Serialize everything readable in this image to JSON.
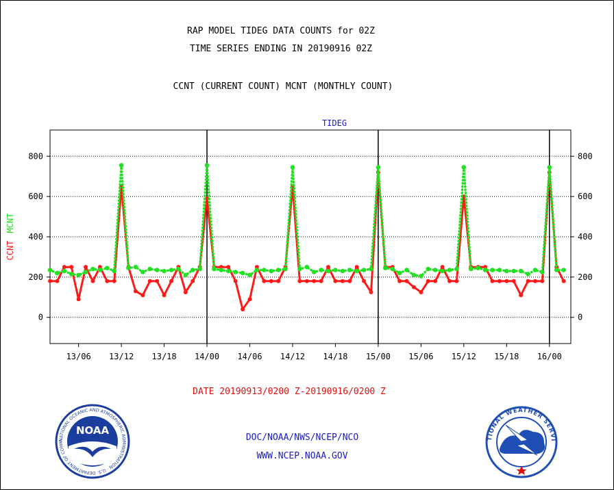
{
  "header": {
    "title_line1": "RAP MODEL TIDEG DATA COUNTS for 02Z",
    "title_line2": "TIME SERIES ENDING IN 20190916 02Z",
    "subtitle": "CCNT (CURRENT COUNT) MCNT (MONTHLY COUNT)"
  },
  "footer": {
    "date_range": "DATE 20190913/0200 Z-20190916/0200 Z",
    "org": "DOC/NOAA/NWS/NCEP/NCO",
    "url": "WWW.NCEP.NOAA.GOV"
  },
  "logos": {
    "noaa_label": "NOAA",
    "noaa_ring": "NATIONAL OCEANIC AND ATMOSPHERIC ADMINISTRATION · U.S. DEPARTMENT OF COMMERCE",
    "nws_ring": "NATIONAL WEATHER SERVICE"
  },
  "colors": {
    "ccnt": "#ff1a1a",
    "mcnt": "#22e022",
    "panel_title": "#1a1acc",
    "footer_red": "#e01010",
    "footer_blue": "#1a1acc",
    "noaa_blue": "#1b3e9e",
    "nws_blue": "#1f4fb5"
  },
  "chart_data": {
    "type": "line",
    "title": "TIDEG",
    "ylabel_left_ccnt": "CCNT",
    "ylabel_left_mcnt": "MCNT",
    "ylim": [
      -130,
      930
    ],
    "yticks": [
      0,
      200,
      400,
      600,
      800
    ],
    "xlim": [
      0,
      73
    ],
    "xticks": [
      {
        "label": "13/06",
        "hour": 4
      },
      {
        "label": "13/12",
        "hour": 10
      },
      {
        "label": "13/18",
        "hour": 16
      },
      {
        "label": "14/00",
        "hour": 22
      },
      {
        "label": "14/06",
        "hour": 28
      },
      {
        "label": "14/12",
        "hour": 34
      },
      {
        "label": "14/18",
        "hour": 40
      },
      {
        "label": "15/00",
        "hour": 46
      },
      {
        "label": "15/06",
        "hour": 52
      },
      {
        "label": "15/12",
        "hour": 58
      },
      {
        "label": "15/18",
        "hour": 64
      },
      {
        "label": "16/00",
        "hour": 70
      }
    ],
    "day_boundaries": [
      22,
      46,
      70
    ],
    "grid": true,
    "series": [
      {
        "name": "CCNT",
        "color": "#ff1a1a",
        "x": [
          0,
          1,
          2,
          3,
          4,
          5,
          6,
          7,
          8,
          9,
          10,
          11,
          12,
          13,
          14,
          15,
          16,
          17,
          18,
          19,
          20,
          21,
          22,
          23,
          24,
          25,
          26,
          27,
          28,
          29,
          30,
          31,
          32,
          33,
          34,
          35,
          36,
          37,
          38,
          39,
          40,
          41,
          42,
          43,
          44,
          45,
          46,
          47,
          48,
          49,
          50,
          51,
          52,
          53,
          54,
          55,
          56,
          57,
          58,
          59,
          60,
          61,
          62,
          63,
          64,
          65,
          66,
          67,
          68,
          69,
          70,
          71,
          72
        ],
        "values": [
          180,
          180,
          250,
          250,
          90,
          250,
          180,
          250,
          180,
          180,
          650,
          250,
          130,
          110,
          180,
          180,
          110,
          180,
          250,
          125,
          180,
          250,
          590,
          250,
          250,
          250,
          180,
          40,
          90,
          250,
          180,
          180,
          180,
          250,
          650,
          180,
          180,
          180,
          180,
          250,
          180,
          180,
          180,
          250,
          180,
          125,
          720,
          250,
          250,
          180,
          180,
          150,
          125,
          180,
          180,
          250,
          180,
          180,
          600,
          250,
          250,
          250,
          180,
          180,
          180,
          180,
          110,
          180,
          180,
          180,
          720,
          250,
          180
        ]
      },
      {
        "name": "MCNT",
        "color": "#22e022",
        "x": [
          0,
          1,
          2,
          3,
          4,
          5,
          6,
          7,
          8,
          9,
          10,
          11,
          12,
          13,
          14,
          15,
          16,
          17,
          18,
          19,
          20,
          21,
          22,
          23,
          24,
          25,
          26,
          27,
          28,
          29,
          30,
          31,
          32,
          33,
          34,
          35,
          36,
          37,
          38,
          39,
          40,
          41,
          42,
          43,
          44,
          45,
          46,
          47,
          48,
          49,
          50,
          51,
          52,
          53,
          54,
          55,
          56,
          57,
          58,
          59,
          60,
          61,
          62,
          63,
          64,
          65,
          66,
          67,
          68,
          69,
          70,
          71,
          72
        ],
        "values": [
          235,
          220,
          230,
          215,
          210,
          225,
          240,
          235,
          245,
          230,
          755,
          245,
          250,
          225,
          240,
          235,
          230,
          235,
          240,
          210,
          235,
          240,
          755,
          240,
          235,
          230,
          225,
          220,
          210,
          235,
          235,
          230,
          235,
          240,
          745,
          240,
          250,
          225,
          235,
          230,
          235,
          230,
          235,
          230,
          235,
          240,
          745,
          245,
          240,
          220,
          235,
          210,
          205,
          240,
          235,
          230,
          235,
          240,
          745,
          240,
          245,
          235,
          235,
          235,
          230,
          230,
          230,
          215,
          235,
          225,
          745,
          235,
          235
        ]
      }
    ]
  }
}
